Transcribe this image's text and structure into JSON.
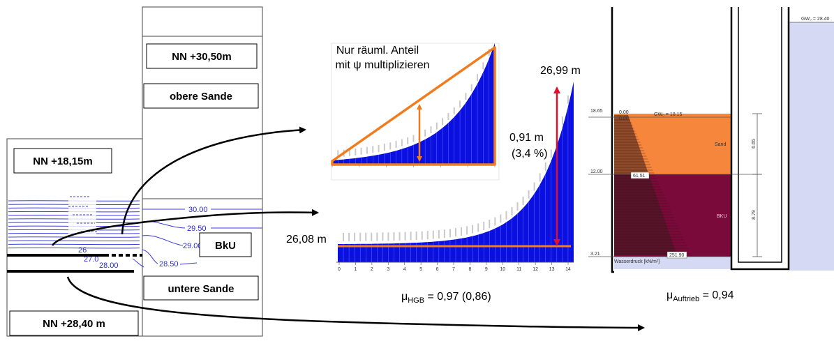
{
  "colors": {
    "blue_fill": "#0a10e0",
    "orange": "#f07c1e",
    "red_arrow": "#e0102a",
    "contour": "#3a3ae0",
    "sand": "#f5863c",
    "bku": "#7a0a3a",
    "water": "#d6d9f4"
  },
  "left_section": {
    "nn_upper": "NN +30,50m",
    "obere_sande": "obere Sande",
    "nn_lower": "NN +18,15m",
    "bku": "BkU",
    "untere_sande": "untere Sande",
    "nn_bottom": "NN +28,40 m",
    "contour_labels": [
      "30.00",
      "29.50",
      "29.00",
      "28.50",
      "28.00",
      "27.0",
      "26"
    ]
  },
  "small_chart": {
    "annotation_line1": "Nur räuml. Anteil",
    "annotation_line2": "mit ψ multiplizieren"
  },
  "main_chart": {
    "top_value": "26,99 m",
    "bottom_value": "26,08 m",
    "delta_value": "0,91 m",
    "delta_percent": "(3,4 %)",
    "x_ticks": [
      "0",
      "1",
      "2",
      "3",
      "4",
      "5",
      "6",
      "7",
      "8",
      "9",
      "10",
      "11",
      "12",
      "13",
      "14"
    ],
    "mu_prefix": "μ",
    "mu_sub": "HGB",
    "mu_value": " = 0,97 (0,86)"
  },
  "right_chart": {
    "gw_top": "GW₀ = 28.40",
    "gw_inner": "GW₀ = 18.15",
    "level_1865": "18.65",
    "zero_a": "0.00",
    "zero_b": "0.00",
    "level_1200": "12.00",
    "value_6151": "61.51",
    "level_321": "3.21",
    "value_25190": "251.90",
    "sand_label": "Sand",
    "bku_label": "BKU",
    "dim_665": "6.65",
    "dim_879": "8.79",
    "wasserdruck": "Wasserdruck [kN/m²]",
    "mu_prefix": "μ",
    "mu_sub": "Auftrieb",
    "mu_value": " = 0,94"
  }
}
